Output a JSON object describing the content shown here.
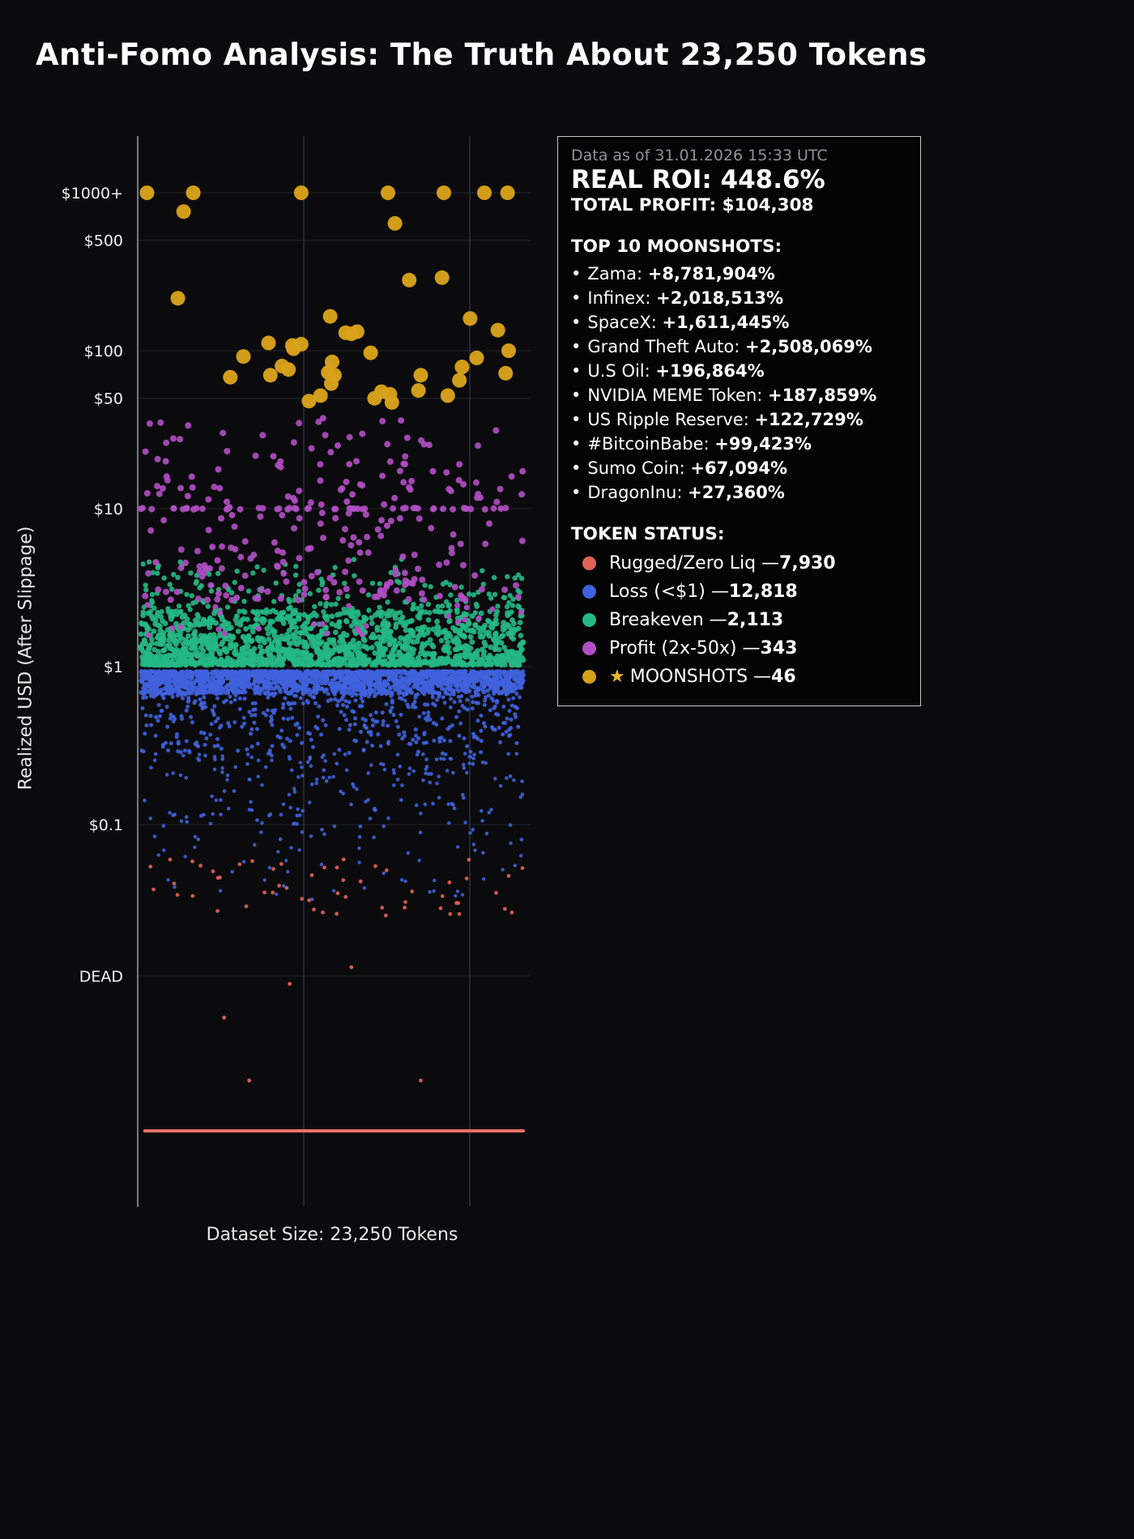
{
  "title": "Anti-Fomo Analysis: The Truth About 23,250 Tokens",
  "chart_data": {
    "type": "scatter",
    "title": "Anti-Fomo Analysis: The Truth About 23,250 Tokens",
    "xlabel": "Dataset Size: 23,250 Tokens",
    "ylabel": "Realized USD (After Slippage)",
    "y_scale": "log",
    "grid": true,
    "yticks": [
      {
        "label": "$1000+",
        "value": 1000
      },
      {
        "label": "$500",
        "value": 500
      },
      {
        "label": "$100",
        "value": 100
      },
      {
        "label": "$50",
        "value": 50
      },
      {
        "label": "$10",
        "value": 10
      },
      {
        "label": "$1",
        "value": 1
      },
      {
        "label": "$0.1",
        "value": 0.1
      },
      {
        "label": "DEAD",
        "value": 0.011
      }
    ],
    "series": [
      {
        "name": "breakeven-core",
        "status": "Breakeven",
        "color": "#25b884",
        "r": 3.4,
        "count": 1450,
        "log_min": 0.01,
        "log_max": 0.34,
        "concentrate": "low",
        "power": 1.7
      },
      {
        "name": "breakeven-upper",
        "status": "Breakeven",
        "color": "#25b884",
        "r": 3.2,
        "count": 230,
        "log_min": 0.34,
        "log_max": 0.68,
        "concentrate": "low",
        "power": 2.0
      },
      {
        "name": "loss-core",
        "status": "Loss",
        "color": "#4062dd",
        "r": 2.8,
        "count": 1900,
        "log_min": -0.17,
        "log_max": -0.03,
        "concentrate": "high",
        "power": 1.6
      },
      {
        "name": "loss-mid",
        "status": "Loss",
        "color": "#4062dd",
        "r": 2.5,
        "count": 430,
        "log_min": -0.55,
        "log_max": -0.17,
        "concentrate": "high",
        "power": 1.6
      },
      {
        "name": "loss-tail",
        "status": "Loss",
        "color": "#4062dd",
        "r": 2.3,
        "count": 210,
        "log_min": -1.1,
        "log_max": -0.55,
        "concentrate": "high",
        "power": 1.3
      },
      {
        "name": "loss-deep",
        "status": "Loss",
        "color": "#4062dd",
        "r": 2.2,
        "count": 45,
        "log_min": -1.48,
        "log_max": -1.1,
        "concentrate": "uniform",
        "power": 1
      },
      {
        "name": "profit-scatter",
        "status": "Profit (2x-50x)",
        "color": "#b14fc4",
        "r": 4,
        "count": 250,
        "log_min": 0.42,
        "log_max": 1.58,
        "concentrate": "low",
        "power": 1.5
      },
      {
        "name": "profit-row-10",
        "status": "Profit (2x-50x)",
        "color": "#b14fc4",
        "r": 4,
        "count": 48,
        "log_min": 0.995,
        "log_max": 1.005,
        "concentrate": "uniform",
        "power": 1
      },
      {
        "name": "profit-low",
        "status": "Profit (2x-50x)",
        "color": "#b14fc4",
        "r": 3.6,
        "count": 25,
        "log_min": 0.18,
        "log_max": 0.42,
        "concentrate": "uniform",
        "power": 1
      },
      {
        "name": "rugged-scatter",
        "status": "Rugged/Zero Liq",
        "color": "#e0635a",
        "r": 2.4,
        "count": 55,
        "log_min": -1.58,
        "log_max": -1.22,
        "concentrate": "uniform",
        "power": 1
      }
    ],
    "hand_points": [
      {
        "name": "rugged-low",
        "status": "Rugged/Zero Liq",
        "color": "#e0635a",
        "r": 2.4,
        "points": [
          [
            0.39,
            0.0098
          ],
          [
            0.22,
            0.006
          ],
          [
            0.285,
            0.0024
          ],
          [
            0.73,
            0.0024
          ],
          [
            0.55,
            0.0125
          ]
        ]
      }
    ],
    "moonshots": {
      "name": "MOONSHOTS",
      "color": "#d9a21b",
      "r": 9,
      "points": [
        [
          0.02,
          1000
        ],
        [
          0.14,
          1000
        ],
        [
          0.42,
          1000
        ],
        [
          0.645,
          1000
        ],
        [
          0.79,
          1000
        ],
        [
          0.895,
          1000
        ],
        [
          0.955,
          1000
        ],
        [
          0.115,
          760
        ],
        [
          0.663,
          640
        ],
        [
          0.7,
          280
        ],
        [
          0.785,
          290
        ],
        [
          0.1,
          215
        ],
        [
          0.495,
          165
        ],
        [
          0.858,
          160
        ],
        [
          0.93,
          135
        ],
        [
          0.535,
          130
        ],
        [
          0.55,
          128
        ],
        [
          0.565,
          132
        ],
        [
          0.335,
          112
        ],
        [
          0.397,
          108
        ],
        [
          0.42,
          110
        ],
        [
          0.4,
          103
        ],
        [
          0.27,
          92
        ],
        [
          0.6,
          97
        ],
        [
          0.958,
          100
        ],
        [
          0.37,
          80
        ],
        [
          0.387,
          76
        ],
        [
          0.5,
          85
        ],
        [
          0.837,
          79
        ],
        [
          0.236,
          68
        ],
        [
          0.34,
          70
        ],
        [
          0.73,
          70
        ],
        [
          0.95,
          72
        ],
        [
          0.49,
          73
        ],
        [
          0.506,
          70
        ],
        [
          0.498,
          62
        ],
        [
          0.628,
          55
        ],
        [
          0.65,
          53
        ],
        [
          0.724,
          56
        ],
        [
          0.8,
          52
        ],
        [
          0.61,
          50
        ],
        [
          0.44,
          48
        ],
        [
          0.47,
          52
        ],
        [
          0.875,
          90
        ],
        [
          0.83,
          65
        ],
        [
          0.655,
          47
        ]
      ]
    },
    "dead_line": {
      "value": 0.00115,
      "x_min": 0.01,
      "x_max": 1.0,
      "color": "#f0706a",
      "height": 4
    }
  },
  "panel": {
    "updated": "Data as of 31.01.2026 15:33 UTC",
    "roi": "REAL ROI: 448.6%",
    "profit": "TOTAL PROFIT: $104,308",
    "moonshots_title": "TOP 10 MOONSHOTS:",
    "moonshots": [
      {
        "name": "Zama:",
        "value": "+8,781,904%"
      },
      {
        "name": "Infinex:",
        "value": "+2,018,513%"
      },
      {
        "name": "SpaceX:",
        "value": "+1,611,445%"
      },
      {
        "name": "Grand Theft Auto:",
        "value": "+2,508,069%"
      },
      {
        "name": "U.S Oil:",
        "value": "+196,864%"
      },
      {
        "name": "NVIDIA MEME Token:",
        "value": "+187,859%"
      },
      {
        "name": "US Ripple Reserve:",
        "value": "+122,729%"
      },
      {
        "name": "#BitcoinBabe:",
        "value": "+99,423%"
      },
      {
        "name": "Sumo Coin:",
        "value": "+67,094%"
      },
      {
        "name": "DragonInu:",
        "value": "+27,360%"
      }
    ],
    "status_title": "TOKEN STATUS:",
    "statuses": [
      {
        "label": "Rugged/Zero Liq",
        "count": "7,930",
        "color": "#e0635a",
        "star": false
      },
      {
        "label": "Loss (<$1)",
        "count": "12,818",
        "color": "#4062dd",
        "star": false
      },
      {
        "label": "Breakeven",
        "count": "2,113",
        "color": "#25b884",
        "star": false
      },
      {
        "label": "Profit (2x-50x)",
        "count": "343",
        "color": "#b14fc4",
        "star": false
      },
      {
        "label": "MOONSHOTS",
        "count": "46",
        "color": "#d9a21b",
        "star": true
      }
    ]
  }
}
